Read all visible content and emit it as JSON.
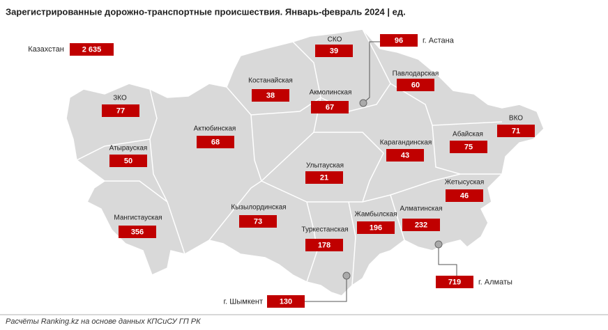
{
  "title": "Зарегистрированные дорожно-транспортные происшествия. Январь-февраль 2024 | ед.",
  "total": {
    "name": "Казахстан",
    "value": 2635,
    "value_label": "2 635"
  },
  "regions": [
    {
      "name": "СКО",
      "value": 39
    },
    {
      "name": "Павлодарская",
      "value": 60
    },
    {
      "name": "Костанайская",
      "value": 38
    },
    {
      "name": "Акмолинская",
      "value": 67
    },
    {
      "name": "ЗКО",
      "value": 77
    },
    {
      "name": "ВКО",
      "value": 71
    },
    {
      "name": "Актюбинская",
      "value": 68
    },
    {
      "name": "Абайская",
      "value": 75
    },
    {
      "name": "Карагандинская",
      "value": 43
    },
    {
      "name": "Атырауская",
      "value": 50
    },
    {
      "name": "Улытауская",
      "value": 21
    },
    {
      "name": "Жетысуская",
      "value": 46
    },
    {
      "name": "Кызылординская",
      "value": 73
    },
    {
      "name": "Алматинская",
      "value": 232
    },
    {
      "name": "Мангистауская",
      "value": 356
    },
    {
      "name": "Жамбылская",
      "value": 196
    },
    {
      "name": "Туркестанская",
      "value": 178
    }
  ],
  "cities": [
    {
      "name": "г. Астана",
      "value": 96
    },
    {
      "name": "г. Алматы",
      "value": 719
    },
    {
      "name": "г. Шымкент",
      "value": 130
    }
  ],
  "footer": "Расчёты Ranking.kz на основе данных КПСиСУ ГП РК"
}
